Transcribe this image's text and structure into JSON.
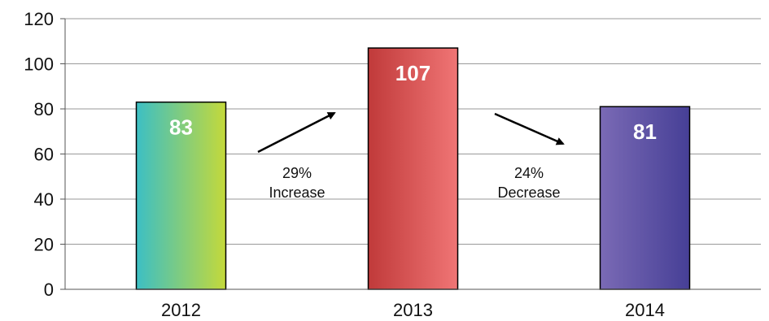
{
  "chart_data": {
    "type": "bar",
    "categories": [
      "2012",
      "2013",
      "2014"
    ],
    "values": [
      83,
      107,
      81
    ],
    "data_labels": [
      "83",
      "107",
      "81"
    ],
    "ylim": [
      0,
      120
    ],
    "yticks": [
      "0",
      "20",
      "40",
      "60",
      "80",
      "100",
      "120"
    ],
    "grid": true,
    "bar_colors": [
      {
        "from": "#3cbfc4",
        "to": "#c4d93a"
      },
      {
        "from": "#c03a3a",
        "to": "#f07575"
      },
      {
        "from": "#7a6ab5",
        "to": "#463f96"
      }
    ],
    "annotations": [
      {
        "line1": "29%",
        "line2": "Increase",
        "direction": "up"
      },
      {
        "line1": "24%",
        "line2": "Decrease",
        "direction": "down"
      }
    ]
  }
}
